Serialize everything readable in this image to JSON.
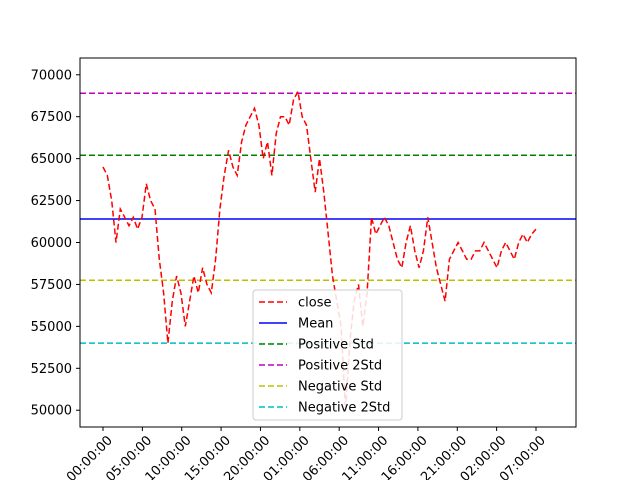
{
  "chart_data": {
    "type": "line",
    "title": "",
    "xlabel": "",
    "ylabel": "",
    "ylim": [
      49000,
      71000
    ],
    "grid": false,
    "legend_position": "lower center",
    "yticks": [
      50000,
      52500,
      55000,
      57500,
      60000,
      62500,
      65000,
      67500,
      70000
    ],
    "ytick_labels": [
      "50000",
      "52500",
      "55000",
      "57500",
      "60000",
      "62500",
      "65000",
      "67500",
      "70000"
    ],
    "xtick_labels": [
      "00:00:00",
      "05:00:00",
      "10:00:00",
      "15:00:00",
      "20:00:00",
      "01:00:00",
      "06:00:00",
      "11:00:00",
      "16:00:00",
      "21:00:00",
      "02:00:00",
      "07:00:00"
    ],
    "x_tick_positions": [
      0,
      0.09091,
      0.18182,
      0.27273,
      0.36364,
      0.45455,
      0.54545,
      0.63636,
      0.72727,
      0.81818,
      0.90909,
      1.0
    ],
    "close_series": {
      "name": "close",
      "color": "#ff0000",
      "style": "dashed",
      "x": [
        0.0,
        0.01,
        0.02,
        0.03,
        0.04,
        0.05,
        0.06,
        0.07,
        0.08,
        0.09,
        0.1,
        0.11,
        0.12,
        0.13,
        0.14,
        0.15,
        0.16,
        0.17,
        0.18,
        0.19,
        0.2,
        0.21,
        0.22,
        0.23,
        0.24,
        0.25,
        0.26,
        0.27,
        0.28,
        0.29,
        0.3,
        0.31,
        0.32,
        0.33,
        0.34,
        0.35,
        0.36,
        0.37,
        0.38,
        0.39,
        0.4,
        0.41,
        0.42,
        0.43,
        0.44,
        0.45,
        0.46,
        0.47,
        0.48,
        0.49,
        0.5,
        0.51,
        0.52,
        0.53,
        0.54,
        0.55,
        0.56,
        0.57,
        0.58,
        0.59,
        0.6,
        0.61,
        0.62,
        0.63,
        0.64,
        0.65,
        0.66,
        0.67,
        0.68,
        0.69,
        0.7,
        0.71,
        0.72,
        0.73,
        0.74,
        0.75,
        0.76,
        0.77,
        0.78,
        0.79,
        0.8,
        0.81,
        0.82,
        0.83,
        0.84,
        0.85,
        0.86,
        0.87,
        0.88,
        0.89,
        0.9,
        0.91,
        0.92,
        0.93,
        0.94,
        0.95,
        0.96,
        0.97,
        0.98,
        0.99,
        1.0
      ],
      "values": [
        64500,
        64000,
        62500,
        60000,
        62000,
        61500,
        61000,
        61500,
        60800,
        61500,
        63500,
        62500,
        62000,
        59000,
        57000,
        54000,
        56500,
        58000,
        57000,
        55000,
        56500,
        58000,
        57000,
        58500,
        57500,
        57000,
        59000,
        62000,
        64000,
        65500,
        64500,
        64000,
        66000,
        67000,
        67500,
        68000,
        67000,
        65000,
        66000,
        64000,
        66500,
        67500,
        67500,
        67000,
        68500,
        69000,
        67500,
        67000,
        65000,
        63000,
        65000,
        63000,
        60500,
        58000,
        56500,
        55000,
        50000,
        54000,
        56500,
        57500,
        55000,
        57000,
        61500,
        60500,
        61000,
        61500,
        61000,
        60000,
        59000,
        58500,
        60000,
        61000,
        59500,
        58500,
        59500,
        61500,
        60000,
        58500,
        57500,
        56500,
        59000,
        59500,
        60000,
        59500,
        59000,
        59000,
        59500,
        59500,
        60000,
        59500,
        59000,
        58500,
        59500,
        60000,
        59500,
        59000,
        60000,
        60500,
        60000,
        60500,
        60800
      ]
    },
    "reference_lines": [
      {
        "name": "Mean",
        "value": 61400,
        "color": "#0000ff",
        "style": "solid"
      },
      {
        "name": "Positive Std",
        "value": 65200,
        "color": "#008000",
        "style": "dashed"
      },
      {
        "name": "Positive 2Std",
        "value": 68900,
        "color": "#bf00bf",
        "style": "dashed"
      },
      {
        "name": "Negative Std",
        "value": 57750,
        "color": "#bfbf00",
        "style": "dashed"
      },
      {
        "name": "Negative 2Std",
        "value": 54000,
        "color": "#00bfbf",
        "style": "dashed"
      }
    ],
    "legend": [
      "close",
      "Mean",
      "Positive Std",
      "Positive 2Std",
      "Negative Std",
      "Negative 2Std"
    ]
  }
}
